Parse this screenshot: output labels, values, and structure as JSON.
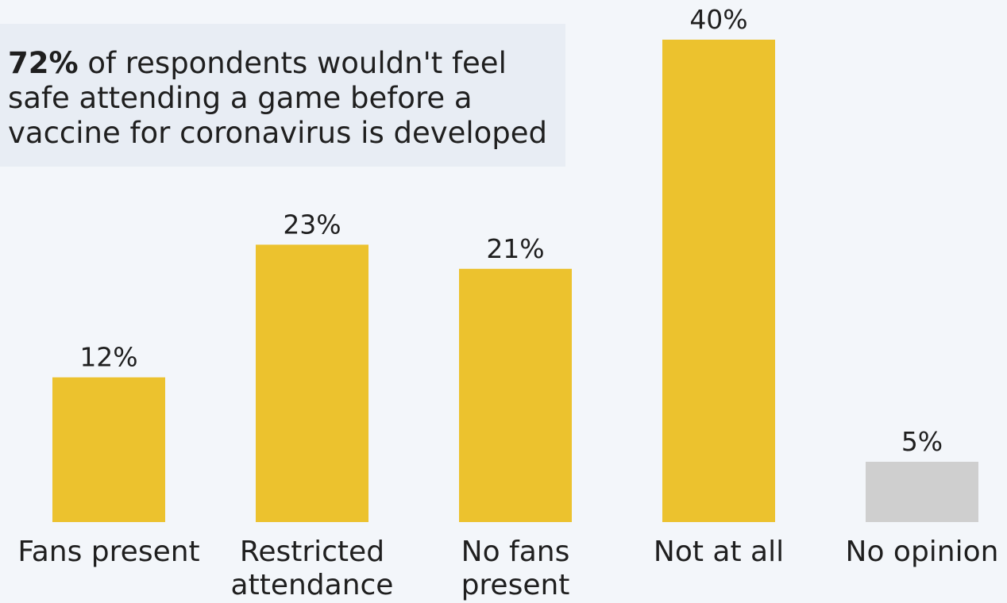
{
  "annotation": {
    "highlight": "72%",
    "text": " of respondents wouldn't feel safe attending a game before a vaccine for coronavirus is developed"
  },
  "colors": {
    "background": "#f3f6fa",
    "callout_background": "#e8edf4",
    "bar_primary": "#ecc22e",
    "bar_neutral": "#cfcfcf",
    "text": "#1f1f1f"
  },
  "chart_data": {
    "type": "bar",
    "categories": [
      [
        "Fans present"
      ],
      [
        "Restricted",
        "attendance"
      ],
      [
        "No fans",
        "present"
      ],
      [
        "Not at all"
      ],
      [
        "No opinion"
      ]
    ],
    "values": [
      12,
      23,
      21,
      40,
      5
    ],
    "value_labels": [
      "12%",
      "23%",
      "21%",
      "40%",
      "5%"
    ],
    "bar_colors": [
      "#ecc22e",
      "#ecc22e",
      "#ecc22e",
      "#ecc22e",
      "#cfcfcf"
    ],
    "unit": "%",
    "ylim": [
      0,
      40
    ],
    "grid": false,
    "title": "",
    "xlabel": "",
    "ylabel": ""
  }
}
